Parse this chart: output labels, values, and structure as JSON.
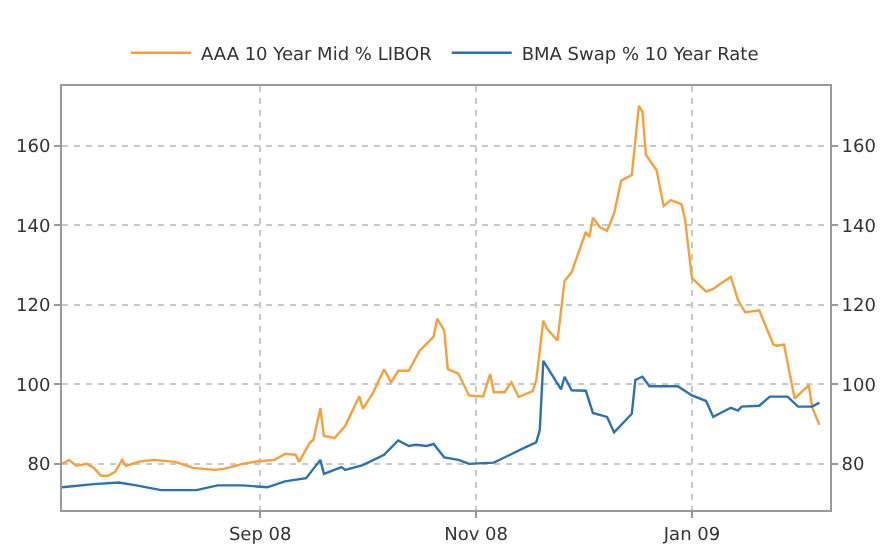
{
  "chart_data": {
    "type": "line",
    "x": [
      "2008-07-07",
      "2008-07-09",
      "2008-07-11",
      "2008-07-14",
      "2008-07-16",
      "2008-07-18",
      "2008-07-20",
      "2008-07-22",
      "2008-07-24",
      "2008-07-25",
      "2008-07-29",
      "2008-08-02",
      "2008-08-08",
      "2008-08-13",
      "2008-08-19",
      "2008-08-22",
      "2008-08-27",
      "2008-08-31",
      "2008-09-05",
      "2008-09-08",
      "2008-09-11",
      "2008-09-12",
      "2008-09-15",
      "2008-09-16",
      "2008-09-18",
      "2008-09-19",
      "2008-09-22",
      "2008-09-25",
      "2008-09-29",
      "2008-09-30",
      "2008-10-03",
      "2008-10-06",
      "2008-10-08",
      "2008-10-10",
      "2008-10-13",
      "2008-10-16",
      "2008-10-20",
      "2008-10-21",
      "2008-10-23",
      "2008-10-24",
      "2008-10-27",
      "2008-10-30",
      "2008-11-01",
      "2008-11-03",
      "2008-11-05",
      "2008-11-06",
      "2008-11-09",
      "2008-11-11",
      "2008-11-13",
      "2008-11-17",
      "2008-11-18",
      "2008-11-20",
      "2008-11-21",
      "2008-11-24",
      "2008-11-26",
      "2008-11-28",
      "2008-12-02",
      "2008-12-03",
      "2008-12-04",
      "2008-12-06",
      "2008-12-08",
      "2008-12-10",
      "2008-12-12",
      "2008-12-15",
      "2008-12-17",
      "2008-12-18",
      "2008-12-19",
      "2008-12-22",
      "2008-12-24",
      "2008-12-26",
      "2008-12-29",
      "2008-12-30",
      "2009-01-01",
      "2009-01-05",
      "2009-01-07",
      "2009-01-09",
      "2009-01-12",
      "2009-01-14",
      "2009-01-16",
      "2009-01-20",
      "2009-01-22",
      "2009-01-24",
      "2009-01-25",
      "2009-01-27",
      "2009-01-30",
      "2009-02-03",
      "2009-02-04",
      "2009-02-06"
    ],
    "series": [
      {
        "name": "AAA 10 Year Mid % LIBOR",
        "color": "#f5a03a",
        "values": [
          80,
          81,
          79.5,
          80,
          79,
          77,
          77,
          78,
          81,
          79.5,
          80.6,
          81,
          80.5,
          79,
          78.5,
          78.8,
          80,
          80.6,
          81,
          82.5,
          82.3,
          80.5,
          85.3,
          86,
          94,
          87,
          86.5,
          89.5,
          97,
          93.8,
          98,
          103.8,
          100.5,
          103.4,
          103.4,
          108.4,
          112,
          116.5,
          113.5,
          103.8,
          102.7,
          97.2,
          97,
          97,
          102.6,
          98,
          98,
          100.5,
          96.8,
          98.3,
          101,
          116,
          114,
          111,
          126,
          128.2,
          138.3,
          137,
          141.9,
          139.5,
          138.6,
          143,
          151.2,
          152.6,
          170,
          168.5,
          157.7,
          153.8,
          144.8,
          146.3,
          145.3,
          141.7,
          126.7,
          123.3,
          124,
          125.3,
          127,
          121.2,
          118.1,
          118.6,
          114.3,
          110,
          109.7,
          110,
          96.4,
          99.8,
          94.1,
          89.8
        ]
      },
      {
        "name": "BMA Swap % 10 Year Rate",
        "color": "#2e72ad",
        "x": [
          "2008-07-07",
          "2008-07-16",
          "2008-07-23",
          "2008-07-28",
          "2008-08-04",
          "2008-08-14",
          "2008-08-20",
          "2008-08-27",
          "2008-09-03",
          "2008-09-08",
          "2008-09-14",
          "2008-09-18",
          "2008-09-19",
          "2008-09-24",
          "2008-09-25",
          "2008-09-30",
          "2008-10-06",
          "2008-10-10",
          "2008-10-13",
          "2008-10-15",
          "2008-10-18",
          "2008-10-20",
          "2008-10-23",
          "2008-10-27",
          "2008-10-30",
          "2008-11-06",
          "2008-11-09",
          "2008-11-15",
          "2008-11-18",
          "2008-11-19",
          "2008-11-20",
          "2008-11-25",
          "2008-11-26",
          "2008-11-28",
          "2008-12-02",
          "2008-12-04",
          "2008-12-08",
          "2008-12-10",
          "2008-12-15",
          "2008-12-16",
          "2008-12-18",
          "2008-12-20",
          "2008-12-28",
          "2009-01-01",
          "2009-01-05",
          "2009-01-07",
          "2009-01-12",
          "2009-01-14",
          "2009-01-15",
          "2009-01-20",
          "2009-01-23",
          "2009-01-28",
          "2009-01-31",
          "2009-02-04",
          "2009-02-06"
        ],
        "values": [
          74.1,
          74.9,
          75.3,
          74.6,
          73.4,
          73.4,
          74.6,
          74.6,
          74.1,
          75.6,
          76.4,
          81,
          77.5,
          79.2,
          78.5,
          79.7,
          82.3,
          85.9,
          84.5,
          84.8,
          84.5,
          85,
          81.6,
          81,
          80,
          80.3,
          81.6,
          84.2,
          85.4,
          88.5,
          105.9,
          98.7,
          101.9,
          98.5,
          98.4,
          92.8,
          91.8,
          87.9,
          92.6,
          101.1,
          101.9,
          99.5,
          99.5,
          97.2,
          95.8,
          91.8,
          94.1,
          93.4,
          94.4,
          94.6,
          96.9,
          96.9,
          94.4,
          94.4,
          95.4
        ]
      }
    ],
    "xlim": [
      "2008-07-07",
      "2009-02-09"
    ],
    "xticks": [
      {
        "value": "2008-09-01",
        "label": "Sep 08"
      },
      {
        "value": "2008-11-01",
        "label": "Nov 08"
      },
      {
        "value": "2009-01-01",
        "label": "Jan 09"
      }
    ],
    "ylim": [
      68.4,
      175
    ],
    "yticks": [
      80,
      100,
      120,
      140,
      160
    ],
    "y2lim": [
      68.4,
      175
    ],
    "y2ticks": [
      80,
      100,
      120,
      140,
      160
    ],
    "grid": true,
    "legend": "top",
    "line_style": "solid"
  }
}
